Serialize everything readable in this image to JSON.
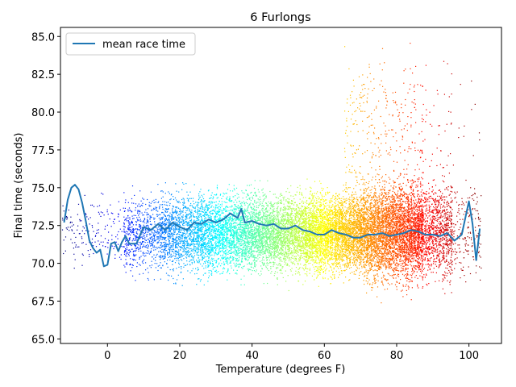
{
  "chart_data": {
    "type": "scatter",
    "title": "6 Furlongs",
    "xlabel": "Temperature (degrees F)",
    "ylabel": "Final time (seconds)",
    "xlim": [
      -13,
      109
    ],
    "ylim": [
      64.7,
      85.6
    ],
    "xticks": [
      0,
      20,
      40,
      60,
      80,
      100
    ],
    "xtick_labels": [
      "0",
      "20",
      "40",
      "60",
      "80",
      "100"
    ],
    "yticks": [
      65.0,
      67.5,
      70.0,
      72.5,
      75.0,
      77.5,
      80.0,
      82.5,
      85.0
    ],
    "ytick_labels": [
      "65.0",
      "67.5",
      "70.0",
      "72.5",
      "75.0",
      "77.5",
      "80.0",
      "82.5",
      "85.0"
    ],
    "grid": false,
    "legend": {
      "position": "top-left",
      "entries": [
        "mean race time"
      ]
    },
    "scatter_colormap": "jet",
    "scatter_x_range": [
      -12,
      103
    ],
    "series": [
      {
        "name": "mean race time",
        "type": "line",
        "color": "#1f77b4",
        "x": [
          -12,
          -11,
          -10,
          -9,
          -8,
          -7,
          -6,
          -5,
          -4,
          -3,
          -2,
          -1,
          0,
          1,
          2,
          3,
          4,
          5,
          6,
          8,
          10,
          12,
          14,
          16,
          18,
          20,
          22,
          24,
          26,
          28,
          30,
          32,
          34,
          36,
          37,
          38,
          40,
          42,
          44,
          46,
          48,
          50,
          52,
          54,
          56,
          58,
          60,
          62,
          64,
          66,
          68,
          70,
          72,
          74,
          76,
          78,
          80,
          82,
          84,
          86,
          88,
          90,
          92,
          94,
          96,
          98,
          100,
          101,
          102,
          103
        ],
        "y": [
          72.7,
          74.2,
          75.0,
          75.2,
          74.9,
          74.0,
          72.8,
          71.5,
          71.0,
          70.7,
          70.9,
          69.8,
          69.9,
          71.3,
          71.4,
          70.8,
          71.4,
          71.8,
          71.3,
          71.3,
          72.4,
          72.2,
          72.6,
          72.2,
          72.7,
          72.4,
          72.2,
          72.7,
          72.6,
          72.9,
          72.7,
          72.9,
          73.3,
          73.0,
          73.6,
          72.7,
          72.8,
          72.6,
          72.5,
          72.6,
          72.3,
          72.3,
          72.5,
          72.2,
          72.1,
          71.9,
          71.9,
          72.2,
          72.0,
          71.9,
          71.7,
          71.7,
          71.9,
          71.9,
          72.0,
          71.8,
          71.9,
          72.0,
          72.2,
          72.1,
          71.9,
          71.9,
          71.8,
          72.0,
          71.5,
          71.9,
          74.1,
          72.6,
          70.2,
          72.3
        ]
      }
    ]
  }
}
